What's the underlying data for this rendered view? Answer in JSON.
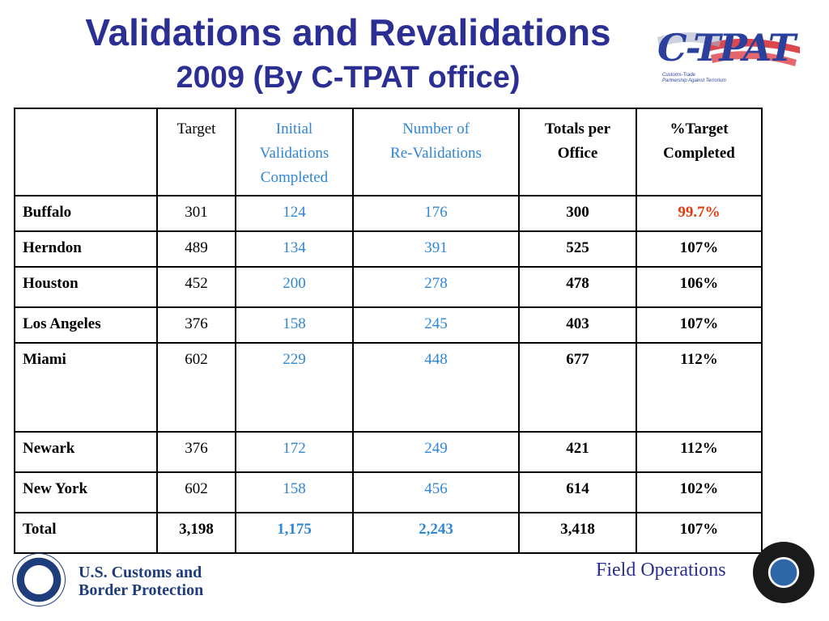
{
  "title": {
    "line1": "Validations and Revalidations",
    "line2": "2009 (By C-TPAT office)"
  },
  "logo": {
    "wordmark": "C-TPAT",
    "tagline1": "Customs-Trade",
    "tagline2": "Partnership Against Terrorism"
  },
  "table": {
    "headers": {
      "office": "",
      "target": "Target",
      "initial": [
        "Initial",
        "Validations",
        "Completed"
      ],
      "reval": [
        "Number of",
        "Re-Validations"
      ],
      "totals": [
        "Totals per",
        "Office"
      ],
      "pct": [
        "%Target",
        "Completed"
      ]
    },
    "rows": [
      {
        "office": "Buffalo",
        "target": "301",
        "initial": "124",
        "reval": "176",
        "total": "300",
        "pct": "99.7%"
      },
      {
        "office": "Herndon",
        "target": "489",
        "initial": "134",
        "reval": "391",
        "total": "525",
        "pct": "107%"
      },
      {
        "office": "Houston",
        "target": "452",
        "initial": "200",
        "reval": "278",
        "total": "478",
        "pct": "106%"
      },
      {
        "office": "Los Angeles",
        "target": "376",
        "initial": "158",
        "reval": "245",
        "total": "403",
        "pct": "107%"
      },
      {
        "office": "Miami",
        "target": "602",
        "initial": "229",
        "reval": "448",
        "total": "677",
        "pct": "112%"
      },
      {
        "office": "Newark",
        "target": "376",
        "initial": "172",
        "reval": "249",
        "total": "421",
        "pct": "112%"
      },
      {
        "office": "New York",
        "target": "602",
        "initial": "158",
        "reval": "456",
        "total": "614",
        "pct": "102%"
      },
      {
        "office": "Total",
        "target": "3,198",
        "initial": "1,175",
        "reval": "2,243",
        "total": "3,418",
        "pct": "107%"
      }
    ]
  },
  "footer": {
    "agency_line1": "U.S. Customs and",
    "agency_line2": "Border Protection",
    "division": "Field Operations"
  },
  "colors": {
    "title": "#2b2f93",
    "link_blue": "#2f86d6",
    "alert_red": "#e8380d"
  }
}
